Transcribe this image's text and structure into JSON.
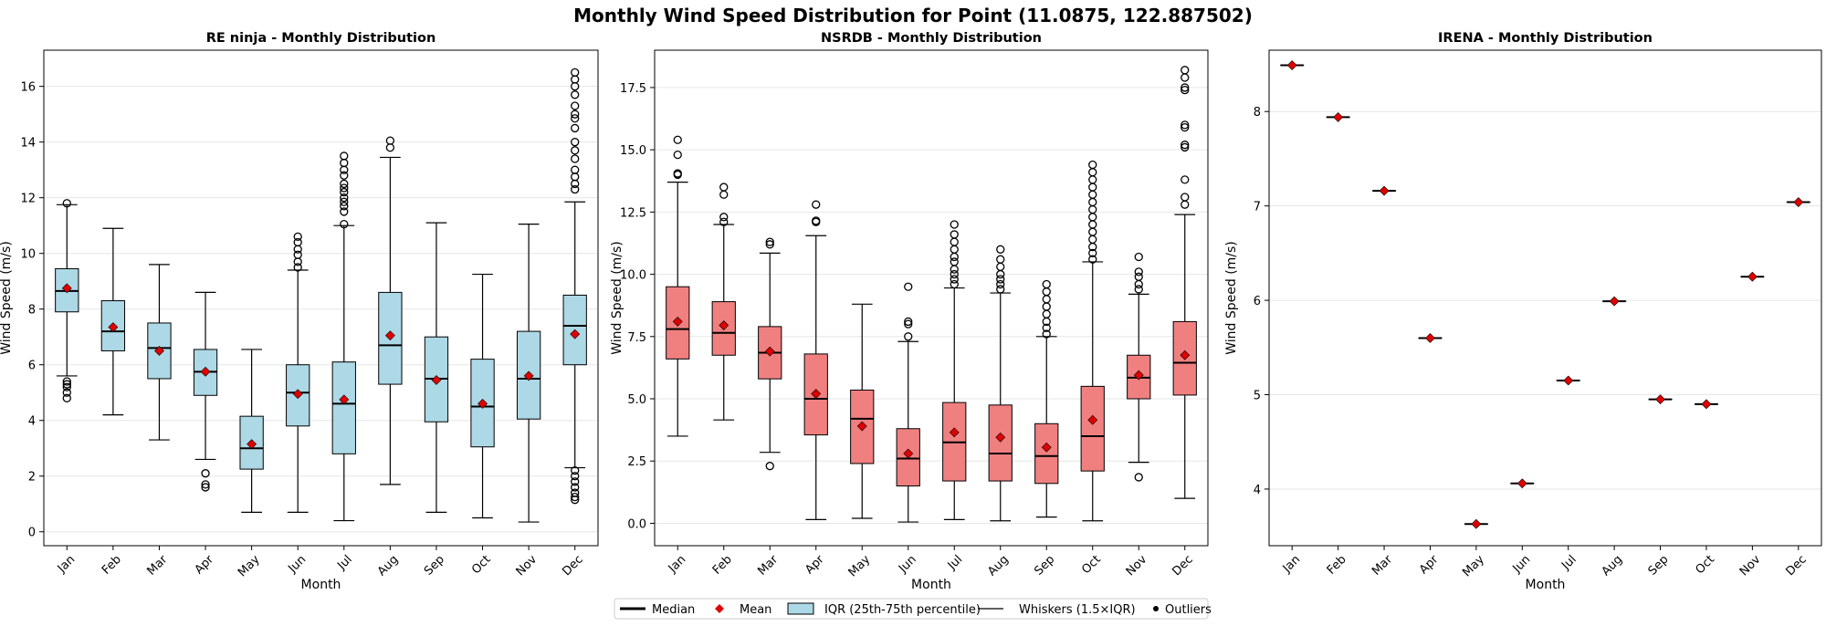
{
  "title": "Monthly Wind Speed Distribution for Point (11.0875, 122.887502)",
  "colors": {
    "renin": "#add8e6",
    "nsrdb": "#f08080",
    "mean": "#e00000",
    "grid": "#e6e6e6"
  },
  "legend": {
    "placement": "bottom-center",
    "items": [
      {
        "label": "Median",
        "kind": "line-thick"
      },
      {
        "label": "Mean",
        "kind": "diamond"
      },
      {
        "label": "IQR (25th-75th percentile)",
        "kind": "box"
      },
      {
        "label": "Whiskers (1.5×IQR)",
        "kind": "line-thin"
      },
      {
        "label": "Outliers",
        "kind": "dot"
      }
    ]
  },
  "chart_data": [
    {
      "type": "box",
      "title": "RE ninja - Monthly Distribution",
      "xlabel": "Month",
      "ylabel": "Wind Speed (m/s)",
      "ylim": [
        -0.5,
        17.3
      ],
      "yticks": [
        0,
        2,
        4,
        6,
        8,
        10,
        12,
        14,
        16
      ],
      "ytick_labels": [
        "0",
        "2",
        "4",
        "6",
        "8",
        "10",
        "12",
        "14",
        "16"
      ],
      "grid": true,
      "box_color": "#add8e6",
      "categories": [
        "Jan",
        "Feb",
        "Mar",
        "Apr",
        "May",
        "Jun",
        "Jul",
        "Aug",
        "Sep",
        "Oct",
        "Nov",
        "Dec"
      ],
      "boxes": [
        {
          "whislo": 5.6,
          "q1": 7.9,
          "med": 8.65,
          "q3": 9.45,
          "whishi": 11.75,
          "mean": 8.75,
          "fliers": [
            11.8,
            5.4,
            5.3,
            5.2,
            5.0,
            4.8
          ]
        },
        {
          "whislo": 4.2,
          "q1": 6.5,
          "med": 7.2,
          "q3": 8.3,
          "whishi": 10.9,
          "mean": 7.35,
          "fliers": []
        },
        {
          "whislo": 3.3,
          "q1": 5.5,
          "med": 6.6,
          "q3": 7.5,
          "whishi": 9.6,
          "mean": 6.5,
          "fliers": []
        },
        {
          "whislo": 2.6,
          "q1": 4.9,
          "med": 5.75,
          "q3": 6.55,
          "whishi": 8.6,
          "mean": 5.75,
          "fliers": [
            2.1,
            1.7,
            1.6
          ]
        },
        {
          "whislo": 0.7,
          "q1": 2.25,
          "med": 3.0,
          "q3": 4.15,
          "whishi": 6.55,
          "mean": 3.15,
          "fliers": []
        },
        {
          "whislo": 0.7,
          "q1": 3.8,
          "med": 5.0,
          "q3": 6.0,
          "whishi": 9.4,
          "mean": 4.95,
          "fliers": [
            9.5,
            9.7,
            9.95,
            10.15,
            10.4,
            10.6
          ]
        },
        {
          "whislo": 0.4,
          "q1": 2.8,
          "med": 4.6,
          "q3": 6.1,
          "whishi": 11.0,
          "mean": 4.75,
          "fliers": [
            11.05,
            11.5,
            11.7,
            11.85,
            12.0,
            12.2,
            12.35,
            12.5,
            12.8,
            13.0,
            13.25,
            13.5
          ]
        },
        {
          "whislo": 1.7,
          "q1": 5.3,
          "med": 6.7,
          "q3": 8.6,
          "whishi": 13.45,
          "mean": 7.05,
          "fliers": [
            13.8,
            14.05
          ]
        },
        {
          "whislo": 0.7,
          "q1": 3.95,
          "med": 5.5,
          "q3": 7.0,
          "whishi": 11.1,
          "mean": 5.45,
          "fliers": []
        },
        {
          "whislo": 0.5,
          "q1": 3.05,
          "med": 4.5,
          "q3": 6.2,
          "whishi": 9.25,
          "mean": 4.6,
          "fliers": []
        },
        {
          "whislo": 0.35,
          "q1": 4.05,
          "med": 5.5,
          "q3": 7.2,
          "whishi": 11.05,
          "mean": 5.6,
          "fliers": []
        },
        {
          "whislo": 2.3,
          "q1": 6.0,
          "med": 7.4,
          "q3": 8.5,
          "whishi": 11.85,
          "mean": 7.1,
          "fliers": [
            12.3,
            12.5,
            12.75,
            13.0,
            13.4,
            13.7,
            14.0,
            14.5,
            14.85,
            15.0,
            15.3,
            15.7,
            16.0,
            16.25,
            16.5,
            2.2,
            2.0,
            1.8,
            1.6,
            1.4,
            1.25,
            1.15
          ]
        }
      ]
    },
    {
      "type": "box",
      "title": "NSRDB - Monthly Distribution",
      "xlabel": "Month",
      "ylabel": "Wind Speed (m/s)",
      "ylim": [
        -0.9,
        19.0
      ],
      "yticks": [
        0,
        2.5,
        5,
        7.5,
        10,
        12.5,
        15,
        17.5
      ],
      "ytick_labels": [
        "0.0",
        "2.5",
        "5.0",
        "7.5",
        "10.0",
        "12.5",
        "15.0",
        "17.5"
      ],
      "grid": true,
      "box_color": "#f08080",
      "categories": [
        "Jan",
        "Feb",
        "Mar",
        "Apr",
        "May",
        "Jun",
        "Jul",
        "Aug",
        "Sep",
        "Oct",
        "Nov",
        "Dec"
      ],
      "boxes": [
        {
          "whislo": 3.5,
          "q1": 6.6,
          "med": 7.8,
          "q3": 9.5,
          "whishi": 13.7,
          "mean": 8.1,
          "fliers": [
            14.0,
            14.05,
            14.8,
            15.4
          ]
        },
        {
          "whislo": 4.15,
          "q1": 6.75,
          "med": 7.65,
          "q3": 8.9,
          "whishi": 12.0,
          "mean": 7.95,
          "fliers": [
            12.1,
            12.3,
            13.2,
            13.5
          ]
        },
        {
          "whislo": 2.85,
          "q1": 5.8,
          "med": 6.85,
          "q3": 7.9,
          "whishi": 10.85,
          "mean": 6.9,
          "fliers": [
            11.2,
            11.3,
            2.3
          ]
        },
        {
          "whislo": 0.15,
          "q1": 3.55,
          "med": 5.0,
          "q3": 6.8,
          "whishi": 11.55,
          "mean": 5.2,
          "fliers": [
            12.1,
            12.15,
            12.8
          ]
        },
        {
          "whislo": 0.2,
          "q1": 2.4,
          "med": 4.2,
          "q3": 5.35,
          "whishi": 8.8,
          "mean": 3.9,
          "fliers": []
        },
        {
          "whislo": 0.05,
          "q1": 1.5,
          "med": 2.6,
          "q3": 3.8,
          "whishi": 7.3,
          "mean": 2.8,
          "fliers": [
            7.5,
            8.0,
            8.1,
            9.5
          ]
        },
        {
          "whislo": 0.15,
          "q1": 1.7,
          "med": 3.25,
          "q3": 4.85,
          "whishi": 9.45,
          "mean": 3.65,
          "fliers": [
            9.6,
            9.8,
            10.0,
            10.2,
            10.5,
            10.7,
            11.0,
            11.3,
            11.6,
            12.0
          ]
        },
        {
          "whislo": 0.1,
          "q1": 1.7,
          "med": 2.8,
          "q3": 4.75,
          "whishi": 9.25,
          "mean": 3.45,
          "fliers": [
            9.4,
            9.6,
            9.8,
            10.0,
            10.3,
            10.6,
            11.0
          ]
        },
        {
          "whislo": 0.25,
          "q1": 1.6,
          "med": 2.7,
          "q3": 4.0,
          "whishi": 7.5,
          "mean": 3.05,
          "fliers": [
            7.6,
            7.85,
            8.1,
            8.4,
            8.7,
            9.0,
            9.3,
            9.6
          ]
        },
        {
          "whislo": 0.1,
          "q1": 2.1,
          "med": 3.5,
          "q3": 5.5,
          "whishi": 10.5,
          "mean": 4.15,
          "fliers": [
            10.6,
            10.85,
            11.1,
            11.4,
            11.7,
            12.0,
            12.3,
            12.6,
            12.9,
            13.2,
            13.5,
            13.8,
            14.1,
            14.4
          ]
        },
        {
          "whislo": 2.45,
          "q1": 5.0,
          "med": 5.85,
          "q3": 6.75,
          "whishi": 9.2,
          "mean": 5.95,
          "fliers": [
            9.4,
            9.6,
            9.9,
            10.1,
            10.7,
            1.85
          ]
        },
        {
          "whislo": 1.0,
          "q1": 5.15,
          "med": 6.45,
          "q3": 8.1,
          "whishi": 12.4,
          "mean": 6.75,
          "fliers": [
            12.8,
            13.1,
            13.8,
            15.1,
            15.2,
            15.9,
            16.0,
            17.4,
            17.5,
            17.9,
            18.2
          ]
        }
      ]
    },
    {
      "type": "box",
      "title": "IRENA - Monthly Distribution",
      "xlabel": "Month",
      "ylabel": "Wind Speed (m/s)",
      "ylim": [
        3.4,
        8.65
      ],
      "yticks": [
        4,
        5,
        6,
        7,
        8
      ],
      "ytick_labels": [
        "4",
        "5",
        "6",
        "7",
        "8"
      ],
      "grid": true,
      "box_color": "#f08080",
      "categories": [
        "Jan",
        "Feb",
        "Mar",
        "Apr",
        "May",
        "Jun",
        "Jul",
        "Aug",
        "Sep",
        "Oct",
        "Nov",
        "Dec"
      ],
      "boxes": [
        {
          "whislo": 8.49,
          "q1": 8.49,
          "med": 8.49,
          "q3": 8.49,
          "whishi": 8.49,
          "mean": 8.49,
          "fliers": []
        },
        {
          "whislo": 7.94,
          "q1": 7.94,
          "med": 7.94,
          "q3": 7.94,
          "whishi": 7.94,
          "mean": 7.94,
          "fliers": []
        },
        {
          "whislo": 7.16,
          "q1": 7.16,
          "med": 7.16,
          "q3": 7.16,
          "whishi": 7.16,
          "mean": 7.16,
          "fliers": []
        },
        {
          "whislo": 5.6,
          "q1": 5.6,
          "med": 5.6,
          "q3": 5.6,
          "whishi": 5.6,
          "mean": 5.6,
          "fliers": []
        },
        {
          "whislo": 3.63,
          "q1": 3.63,
          "med": 3.63,
          "q3": 3.63,
          "whishi": 3.63,
          "mean": 3.63,
          "fliers": []
        },
        {
          "whislo": 4.06,
          "q1": 4.06,
          "med": 4.06,
          "q3": 4.06,
          "whishi": 4.06,
          "mean": 4.06,
          "fliers": []
        },
        {
          "whislo": 5.15,
          "q1": 5.15,
          "med": 5.15,
          "q3": 5.15,
          "whishi": 5.15,
          "mean": 5.15,
          "fliers": []
        },
        {
          "whislo": 5.99,
          "q1": 5.99,
          "med": 5.99,
          "q3": 5.99,
          "whishi": 5.99,
          "mean": 5.99,
          "fliers": []
        },
        {
          "whislo": 4.95,
          "q1": 4.95,
          "med": 4.95,
          "q3": 4.95,
          "whishi": 4.95,
          "mean": 4.95,
          "fliers": []
        },
        {
          "whislo": 4.9,
          "q1": 4.9,
          "med": 4.9,
          "q3": 4.9,
          "whishi": 4.9,
          "mean": 4.9,
          "fliers": []
        },
        {
          "whislo": 6.25,
          "q1": 6.25,
          "med": 6.25,
          "q3": 6.25,
          "whishi": 6.25,
          "mean": 6.25,
          "fliers": []
        },
        {
          "whislo": 7.04,
          "q1": 7.04,
          "med": 7.04,
          "q3": 7.04,
          "whishi": 7.04,
          "mean": 7.04,
          "fliers": []
        }
      ]
    }
  ]
}
